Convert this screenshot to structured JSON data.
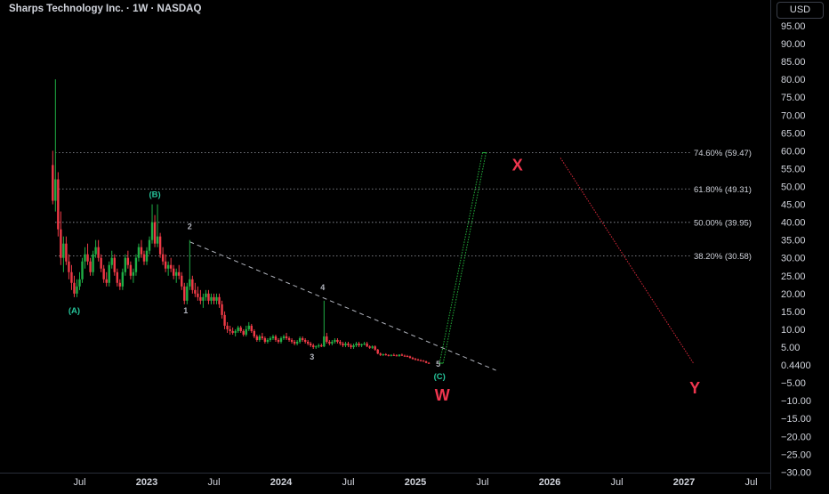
{
  "header": {
    "title": "Sharps Technology Inc. · 1W · NASDAQ",
    "currency": "USD"
  },
  "colors": {
    "background": "#000000",
    "up_candle": "#1fae45",
    "down_candle": "#ef3a46",
    "wave_label": "#26c49a",
    "minor_label": "#b2b5be",
    "big_label": "#f0364f",
    "projection_green": "#22b33b",
    "projection_red": "#d8283a",
    "axis_text": "#d1d4dc"
  },
  "chart_data": {
    "type": "candlestick",
    "title": "Sharps Technology Inc. · 1W · NASDAQ",
    "price_axis_labels": [
      "95.00",
      "90.00",
      "85.00",
      "80.00",
      "75.00",
      "70.00",
      "65.00",
      "60.00",
      "55.00",
      "50.00",
      "45.00",
      "40.00",
      "35.00",
      "30.00",
      "25.00",
      "20.00",
      "15.00",
      "10.00",
      "5.00",
      "0.4400",
      "−5.00",
      "−10.00",
      "−15.00",
      "−20.00",
      "−25.00",
      "−30.00"
    ],
    "time_axis_labels": [
      "Jul",
      "2023",
      "Jul",
      "2024",
      "Jul",
      "2025",
      "Jul",
      "2026",
      "Jul",
      "2027",
      "Jul"
    ],
    "x_ticks_decimal_year": [
      2022.5,
      2023.0,
      2023.5,
      2024.0,
      2024.5,
      2025.0,
      2025.5,
      2026.0,
      2026.5,
      2027.0,
      2027.5
    ],
    "y_range": [
      -30,
      97
    ],
    "current_price": 0.44,
    "candles": [
      [
        2022.3,
        56,
        60,
        45,
        46
      ],
      [
        2022.32,
        46,
        80,
        43,
        52
      ],
      [
        2022.34,
        52,
        54,
        36,
        38
      ],
      [
        2022.36,
        38,
        43,
        28,
        30
      ],
      [
        2022.38,
        30,
        36,
        26,
        34
      ],
      [
        2022.4,
        34,
        36,
        28,
        29
      ],
      [
        2022.42,
        29,
        31,
        24,
        26
      ],
      [
        2022.44,
        26,
        28,
        21,
        23
      ],
      [
        2022.46,
        23,
        25,
        19,
        20
      ],
      [
        2022.48,
        20,
        24,
        19,
        22
      ],
      [
        2022.5,
        22,
        26,
        21,
        24
      ],
      [
        2022.52,
        24,
        30,
        23,
        29
      ],
      [
        2022.54,
        29,
        33,
        27,
        31
      ],
      [
        2022.56,
        31,
        34,
        28,
        29
      ],
      [
        2022.58,
        29,
        30,
        25,
        26
      ],
      [
        2022.6,
        26,
        32,
        25,
        31
      ],
      [
        2022.62,
        31,
        35,
        30,
        33
      ],
      [
        2022.64,
        33,
        35,
        29,
        30
      ],
      [
        2022.66,
        30,
        31,
        26,
        27
      ],
      [
        2022.68,
        27,
        28,
        23,
        24
      ],
      [
        2022.7,
        24,
        26,
        22,
        23
      ],
      [
        2022.72,
        23,
        29,
        22,
        28
      ],
      [
        2022.74,
        28,
        32,
        27,
        30
      ],
      [
        2022.76,
        30,
        31,
        25,
        26
      ],
      [
        2022.78,
        26,
        27,
        22,
        23
      ],
      [
        2022.8,
        23,
        24,
        21,
        22
      ],
      [
        2022.82,
        22,
        27,
        21,
        26
      ],
      [
        2022.84,
        26,
        31,
        25,
        30
      ],
      [
        2022.86,
        30,
        32,
        27,
        28
      ],
      [
        2022.88,
        28,
        29,
        24,
        25
      ],
      [
        2022.9,
        25,
        27,
        23,
        26
      ],
      [
        2022.92,
        26,
        31,
        25,
        30
      ],
      [
        2022.94,
        30,
        34,
        29,
        33
      ],
      [
        2022.96,
        33,
        35,
        30,
        31
      ],
      [
        2022.98,
        31,
        32,
        28,
        29
      ],
      [
        2023.0,
        29,
        33,
        28,
        32
      ],
      [
        2023.02,
        32,
        36,
        31,
        35
      ],
      [
        2023.04,
        35,
        45,
        34,
        40
      ],
      [
        2023.06,
        40,
        42,
        33,
        34
      ],
      [
        2023.08,
        34,
        45,
        33,
        36
      ],
      [
        2023.1,
        36,
        37,
        30,
        31
      ],
      [
        2023.12,
        31,
        33,
        28,
        29
      ],
      [
        2023.14,
        29,
        31,
        26,
        27
      ],
      [
        2023.16,
        27,
        29,
        25,
        28
      ],
      [
        2023.18,
        28,
        30,
        26,
        27
      ],
      [
        2023.2,
        27,
        28,
        24,
        25
      ],
      [
        2023.22,
        25,
        27,
        23,
        26
      ],
      [
        2023.24,
        26,
        28,
        24,
        25
      ],
      [
        2023.26,
        25,
        26,
        21,
        22
      ],
      [
        2023.28,
        22,
        23,
        17,
        18
      ],
      [
        2023.3,
        18,
        23,
        17,
        22
      ],
      [
        2023.32,
        22,
        35,
        21,
        24
      ],
      [
        2023.34,
        24,
        25,
        20,
        21
      ],
      [
        2023.36,
        21,
        23,
        19,
        20
      ],
      [
        2023.38,
        20,
        22,
        18,
        19
      ],
      [
        2023.4,
        19,
        21,
        17,
        18
      ],
      [
        2023.42,
        18,
        20,
        16,
        19
      ],
      [
        2023.44,
        19,
        21,
        18,
        20
      ],
      [
        2023.46,
        20,
        21,
        17,
        18
      ],
      [
        2023.48,
        18,
        20,
        17,
        19
      ],
      [
        2023.5,
        19,
        20,
        17,
        18
      ],
      [
        2023.52,
        18,
        20,
        17,
        19
      ],
      [
        2023.54,
        19,
        20,
        16,
        17
      ],
      [
        2023.56,
        17,
        18,
        13,
        14
      ],
      [
        2023.58,
        14,
        15,
        10,
        11
      ],
      [
        2023.6,
        11,
        12,
        9,
        10
      ],
      [
        2023.62,
        10,
        11,
        8.5,
        9.5
      ],
      [
        2023.64,
        9.5,
        10.5,
        8.5,
        9
      ],
      [
        2023.66,
        9,
        10,
        8,
        9.5
      ],
      [
        2023.68,
        9.5,
        11,
        9,
        10.5
      ],
      [
        2023.7,
        10.5,
        11,
        9,
        9.5
      ],
      [
        2023.72,
        9.5,
        10,
        8,
        8.5
      ],
      [
        2023.74,
        8.5,
        11,
        8,
        10
      ],
      [
        2023.76,
        10,
        12,
        9.5,
        11
      ],
      [
        2023.78,
        11,
        11.5,
        9,
        9.5
      ],
      [
        2023.8,
        9.5,
        10,
        7.5,
        8
      ],
      [
        2023.82,
        8,
        8.5,
        6.5,
        7
      ],
      [
        2023.84,
        7,
        8.5,
        6.5,
        8
      ],
      [
        2023.86,
        8,
        9,
        7,
        7.5
      ],
      [
        2023.88,
        7.5,
        8,
        6,
        6.5
      ],
      [
        2023.9,
        6.5,
        7.5,
        6,
        7
      ],
      [
        2023.92,
        7,
        8,
        6.5,
        7.5
      ],
      [
        2023.94,
        7.5,
        8.5,
        7,
        8
      ],
      [
        2023.96,
        8,
        8.5,
        6.5,
        7
      ],
      [
        2023.98,
        7,
        7.5,
        6,
        6.5
      ],
      [
        2024.0,
        6.5,
        8,
        6,
        7.5
      ],
      [
        2024.02,
        7.5,
        8.5,
        7,
        8
      ],
      [
        2024.04,
        8,
        9,
        7,
        7.5
      ],
      [
        2024.06,
        7.5,
        8,
        6.5,
        7
      ],
      [
        2024.08,
        7,
        7.5,
        6,
        6.5
      ],
      [
        2024.1,
        6.5,
        7,
        5.5,
        6
      ],
      [
        2024.12,
        6,
        7,
        5.5,
        6.5
      ],
      [
        2024.14,
        6.5,
        8,
        6,
        7.5
      ],
      [
        2024.16,
        7.5,
        8,
        6.5,
        7
      ],
      [
        2024.18,
        7,
        7.5,
        6,
        6.5
      ],
      [
        2024.2,
        6.5,
        7,
        5.5,
        6
      ],
      [
        2024.22,
        6,
        6.5,
        5,
        5.5
      ],
      [
        2024.24,
        5.5,
        6,
        4.5,
        5
      ],
      [
        2024.26,
        5,
        5.5,
        4.5,
        5.2
      ],
      [
        2024.28,
        5.2,
        6,
        4.8,
        5.5
      ],
      [
        2024.3,
        5.5,
        6,
        5,
        5.2
      ],
      [
        2024.32,
        5.2,
        18,
        5,
        8
      ],
      [
        2024.34,
        8,
        9,
        6,
        6.5
      ],
      [
        2024.36,
        6.5,
        7,
        5.5,
        6
      ],
      [
        2024.38,
        6,
        7,
        5.5,
        6.5
      ],
      [
        2024.4,
        6.5,
        7.5,
        6,
        7
      ],
      [
        2024.42,
        7,
        7.5,
        6,
        6.5
      ],
      [
        2024.44,
        6.5,
        7,
        5.5,
        6
      ],
      [
        2024.46,
        6,
        6.5,
        5,
        5.5
      ],
      [
        2024.48,
        5.5,
        6.5,
        5,
        6
      ],
      [
        2024.5,
        6,
        6.5,
        5,
        5.5
      ],
      [
        2024.52,
        5.5,
        6,
        4.5,
        5
      ],
      [
        2024.54,
        5,
        6,
        4.5,
        5.5
      ],
      [
        2024.56,
        5.5,
        6.5,
        5,
        6
      ],
      [
        2024.58,
        6,
        6.5,
        5,
        5.5
      ],
      [
        2024.6,
        5.5,
        6,
        5,
        5.8
      ],
      [
        2024.62,
        5.8,
        6.5,
        5.5,
        6
      ],
      [
        2024.64,
        6,
        6.5,
        5,
        5.2
      ],
      [
        2024.66,
        5.2,
        5.5,
        4.5,
        4.8
      ],
      [
        2024.68,
        4.8,
        5.5,
        4.5,
        5.2
      ],
      [
        2024.7,
        5.2,
        5.5,
        4,
        4.3
      ],
      [
        2024.72,
        4.3,
        4.5,
        3,
        3.2
      ],
      [
        2024.74,
        3.2,
        3.5,
        2.5,
        2.8
      ],
      [
        2024.76,
        2.8,
        3.2,
        2.5,
        3
      ],
      [
        2024.78,
        3,
        3.3,
        2.6,
        2.8
      ],
      [
        2024.8,
        2.8,
        3,
        2.4,
        2.6
      ],
      [
        2024.82,
        2.6,
        3,
        2.4,
        2.8
      ],
      [
        2024.84,
        2.8,
        3.2,
        2.5,
        2.7
      ],
      [
        2024.86,
        2.7,
        3,
        2.4,
        2.5
      ],
      [
        2024.88,
        2.5,
        3,
        2.3,
        2.9
      ],
      [
        2024.9,
        2.9,
        3.2,
        2.5,
        2.6
      ],
      [
        2024.92,
        2.6,
        2.9,
        2.3,
        2.5
      ],
      [
        2024.94,
        2.5,
        2.8,
        2.2,
        2.4
      ],
      [
        2024.96,
        2.4,
        2.6,
        1.8,
        2
      ],
      [
        2024.98,
        2,
        2.3,
        1.5,
        1.7
      ],
      [
        2025.0,
        1.7,
        2,
        1.3,
        1.5
      ],
      [
        2025.02,
        1.5,
        1.8,
        1.2,
        1.3
      ],
      [
        2025.04,
        1.3,
        1.6,
        1,
        1.2
      ],
      [
        2025.06,
        1.2,
        1.4,
        0.9,
        1
      ],
      [
        2025.08,
        1,
        1.2,
        0.5,
        0.6
      ],
      [
        2025.1,
        0.6,
        0.8,
        0.3,
        0.44
      ]
    ],
    "wave_labels": [
      {
        "text": "(A)",
        "x": 2022.46,
        "y": 14.5
      },
      {
        "text": "(B)",
        "x": 2023.06,
        "y": 47
      },
      {
        "text": "(C)",
        "x": 2025.18,
        "y": -4
      },
      {
        "text": "1",
        "x": 2023.29,
        "y": 14.5
      },
      {
        "text": "2",
        "x": 2023.32,
        "y": 38
      },
      {
        "text": "3",
        "x": 2024.23,
        "y": 1.5
      },
      {
        "text": "4",
        "x": 2024.31,
        "y": 21
      },
      {
        "text": "5",
        "x": 2025.17,
        "y": -0.5
      }
    ],
    "big_labels": [
      {
        "text": "W",
        "x": 2025.2,
        "y": -10
      },
      {
        "text": "X",
        "x": 2025.76,
        "y": 54.5
      },
      {
        "text": "Y",
        "x": 2027.08,
        "y": -8
      }
    ],
    "fib_levels": [
      {
        "text": "74.60% (59.47)",
        "price": 59.47
      },
      {
        "text": "61.80% (49.31)",
        "price": 49.31
      },
      {
        "text": "50.00% (39.95)",
        "price": 39.95
      },
      {
        "text": "38.20% (30.58)",
        "price": 30.58
      }
    ],
    "trendline": {
      "x1": 2023.32,
      "y1": 34.5,
      "x2": 2025.6,
      "y2": -1.5
    },
    "projection_up": {
      "x1": 2025.18,
      "y1": 0.5,
      "x2": 2025.5,
      "y2": 59.47
    },
    "projection_down": {
      "x1": 2026.08,
      "y1": 58,
      "x2": 2027.07,
      "y2": 0.5
    }
  }
}
